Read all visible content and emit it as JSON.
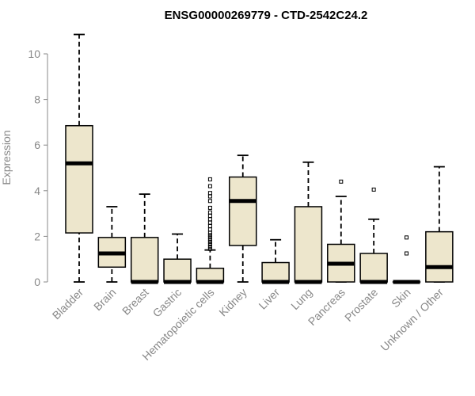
{
  "chart_data": {
    "type": "box",
    "title": "ENSG00000269779 - CTD-2542C24.2",
    "ylabel": "Expression",
    "xlabel": "",
    "ylim": [
      0,
      11
    ],
    "yticks": [
      0,
      2,
      4,
      6,
      8,
      10
    ],
    "box_fill": "#ede6cc",
    "categories": [
      "Bladder",
      "Brain",
      "Breast",
      "Gastric",
      "Hematopoietic cells",
      "Kidney",
      "Liver",
      "Lung",
      "Pancreas",
      "Prostate",
      "Skin",
      "Unknown / Other"
    ],
    "boxes": [
      {
        "min": 0,
        "q1": 2.15,
        "median": 5.2,
        "q3": 6.85,
        "max": 10.85,
        "outliers": []
      },
      {
        "min": 0,
        "q1": 0.65,
        "median": 1.25,
        "q3": 1.95,
        "max": 3.3,
        "outliers": []
      },
      {
        "min": 0,
        "q1": 0,
        "median": 0,
        "q3": 1.95,
        "max": 3.85,
        "outliers": []
      },
      {
        "min": 0,
        "q1": 0,
        "median": 0,
        "q3": 1.0,
        "max": 2.1,
        "outliers": []
      },
      {
        "min": 0,
        "q1": 0,
        "median": 0,
        "q3": 0.6,
        "max": 1.4,
        "outliers": [
          1.45,
          1.55,
          1.65,
          1.75,
          1.85,
          1.95,
          2.05,
          2.15,
          2.3,
          2.45,
          2.6,
          2.75,
          2.9,
          3.05,
          3.25,
          3.55,
          3.75,
          3.9,
          4.2,
          4.5
        ]
      },
      {
        "min": 0,
        "q1": 1.6,
        "median": 3.55,
        "q3": 4.6,
        "max": 5.55,
        "outliers": []
      },
      {
        "min": 0,
        "q1": 0,
        "median": 0,
        "q3": 0.85,
        "max": 1.85,
        "outliers": []
      },
      {
        "min": 0,
        "q1": 0,
        "median": 0,
        "q3": 3.3,
        "max": 5.25,
        "outliers": []
      },
      {
        "min": 0,
        "q1": 0,
        "median": 0.8,
        "q3": 1.65,
        "max": 3.75,
        "outliers": [
          4.4
        ]
      },
      {
        "min": 0,
        "q1": 0,
        "median": 0,
        "q3": 1.25,
        "max": 2.75,
        "outliers": [
          4.05
        ]
      },
      {
        "min": 0,
        "q1": 0,
        "median": 0,
        "q3": 0,
        "max": 0,
        "outliers": [
          1.25,
          1.95
        ]
      },
      {
        "min": 0,
        "q1": 0,
        "median": 0.65,
        "q3": 2.2,
        "max": 5.05,
        "outliers": []
      }
    ]
  }
}
